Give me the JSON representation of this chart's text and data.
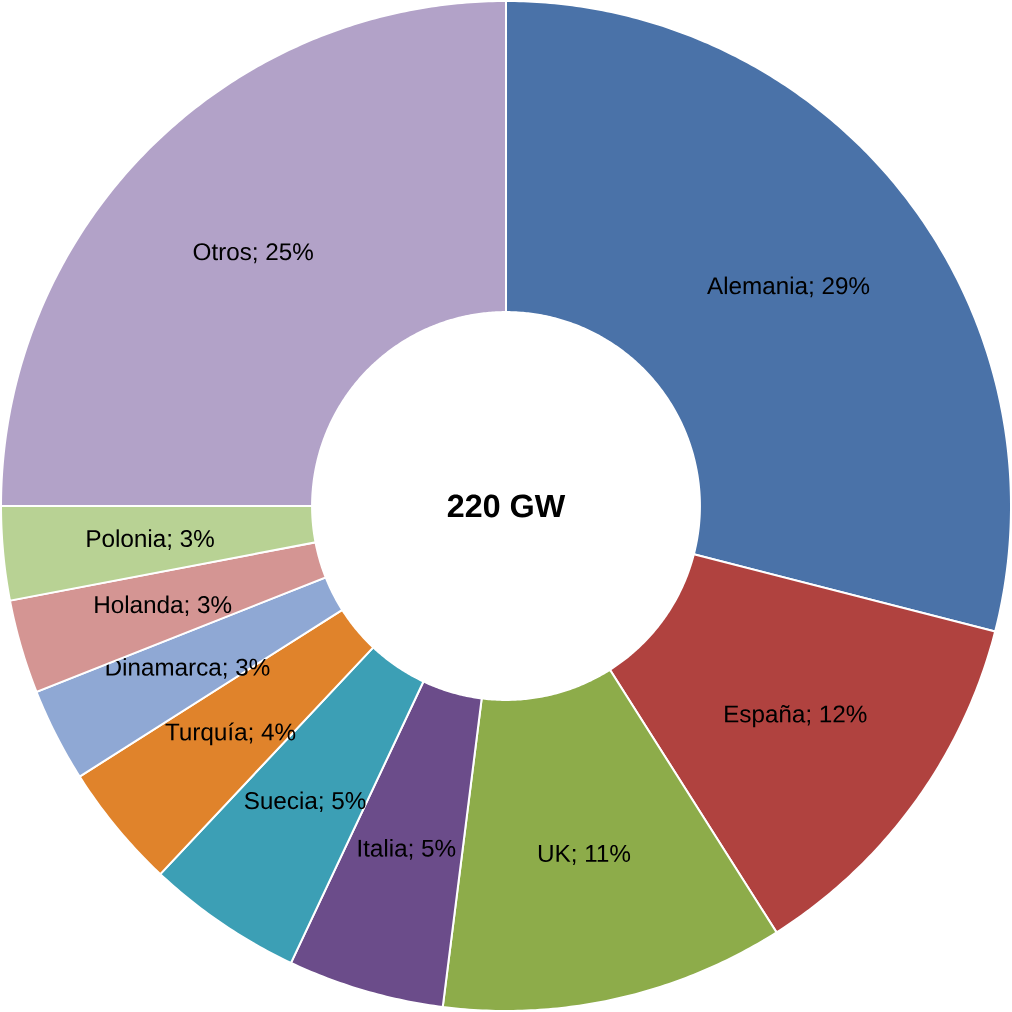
{
  "chart_data": {
    "type": "donut",
    "categories": [
      "Alemania",
      "España",
      "UK",
      "Italia",
      "Suecia",
      "Turquía",
      "Dinamarca",
      "Holanda",
      "Polonia",
      "Otros"
    ],
    "values": [
      29,
      12,
      11,
      5,
      5,
      4,
      3,
      3,
      3,
      25
    ],
    "colors": [
      "#4a72a8",
      "#b0423f",
      "#8dac4a",
      "#6b4c8a",
      "#3c9fb5",
      "#e0832b",
      "#8fa8d4",
      "#d49593",
      "#b8d294",
      "#b2a2c8"
    ],
    "value_labels": [
      "; 29%",
      "; 12%",
      "; 11%",
      "; 5%",
      "; 5%",
      "; 4%",
      "; 3%",
      "; 3%",
      "; 3%",
      "; 25%"
    ],
    "annotations": [
      "220 GW"
    ]
  }
}
